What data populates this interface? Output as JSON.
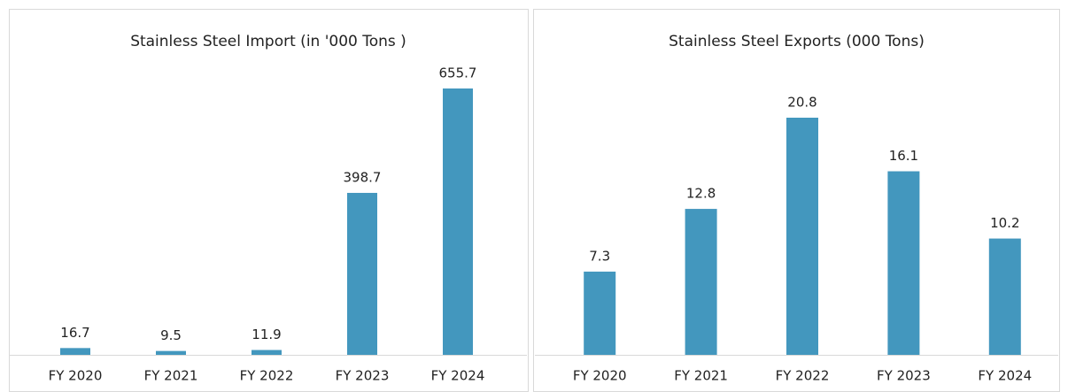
{
  "chart_data": [
    {
      "type": "bar",
      "title": "Stainless Steel Import (in '000 Tons )",
      "categories": [
        "FY 2020",
        "FY 2021",
        "FY 2022",
        "FY 2023",
        "FY 2024"
      ],
      "values": [
        16.7,
        9.5,
        11.9,
        398.7,
        655.7
      ],
      "color": "#4397be"
    },
    {
      "type": "bar",
      "title": "Stainless Steel Exports (000 Tons)",
      "categories": [
        "FY 2020",
        "FY 2021",
        "FY 2022",
        "FY 2023",
        "FY 2024"
      ],
      "values": [
        7.3,
        12.8,
        20.8,
        16.1,
        10.2
      ],
      "color": "#4397be"
    }
  ]
}
